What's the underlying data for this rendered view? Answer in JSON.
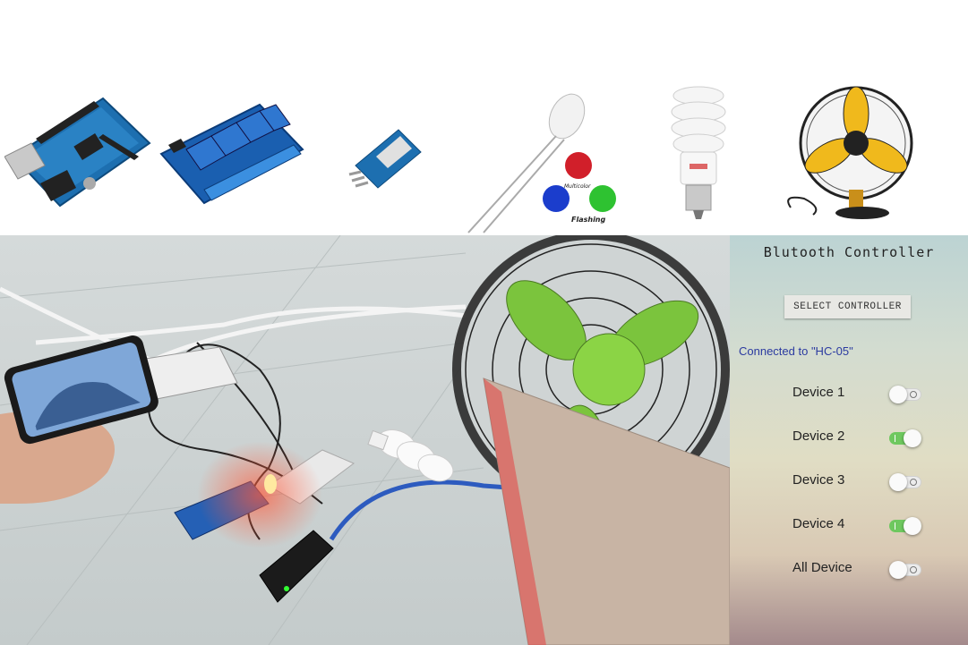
{
  "components": [
    {
      "name": "Arduino UNO board",
      "icon": "arduino-board-icon"
    },
    {
      "name": "4-channel relay module",
      "icon": "relay-module-icon"
    },
    {
      "name": "HC-05 bluetooth module",
      "icon": "bluetooth-module-icon"
    },
    {
      "name": "Multicolor flashing LED",
      "icon": "led-icon",
      "labels": [
        "Multicolor",
        "Flashing"
      ]
    },
    {
      "name": "CFL bulb",
      "icon": "bulb-icon"
    },
    {
      "name": "Table fan",
      "icon": "fan-icon"
    }
  ],
  "app": {
    "title": "Blutooth Controller",
    "select_button": "SELECT CONTROLLER",
    "status": "Connected to \"HC-05\"",
    "devices": [
      {
        "label": "Device 1",
        "on": false
      },
      {
        "label": "Device 2",
        "on": true
      },
      {
        "label": "Device 3",
        "on": false
      },
      {
        "label": "Device 4",
        "on": true
      },
      {
        "label": "All Device",
        "on": false
      }
    ]
  },
  "colors": {
    "switch_on": "#6ec85f",
    "switch_off": "#ececec",
    "status_text": "#2b3aa0"
  }
}
